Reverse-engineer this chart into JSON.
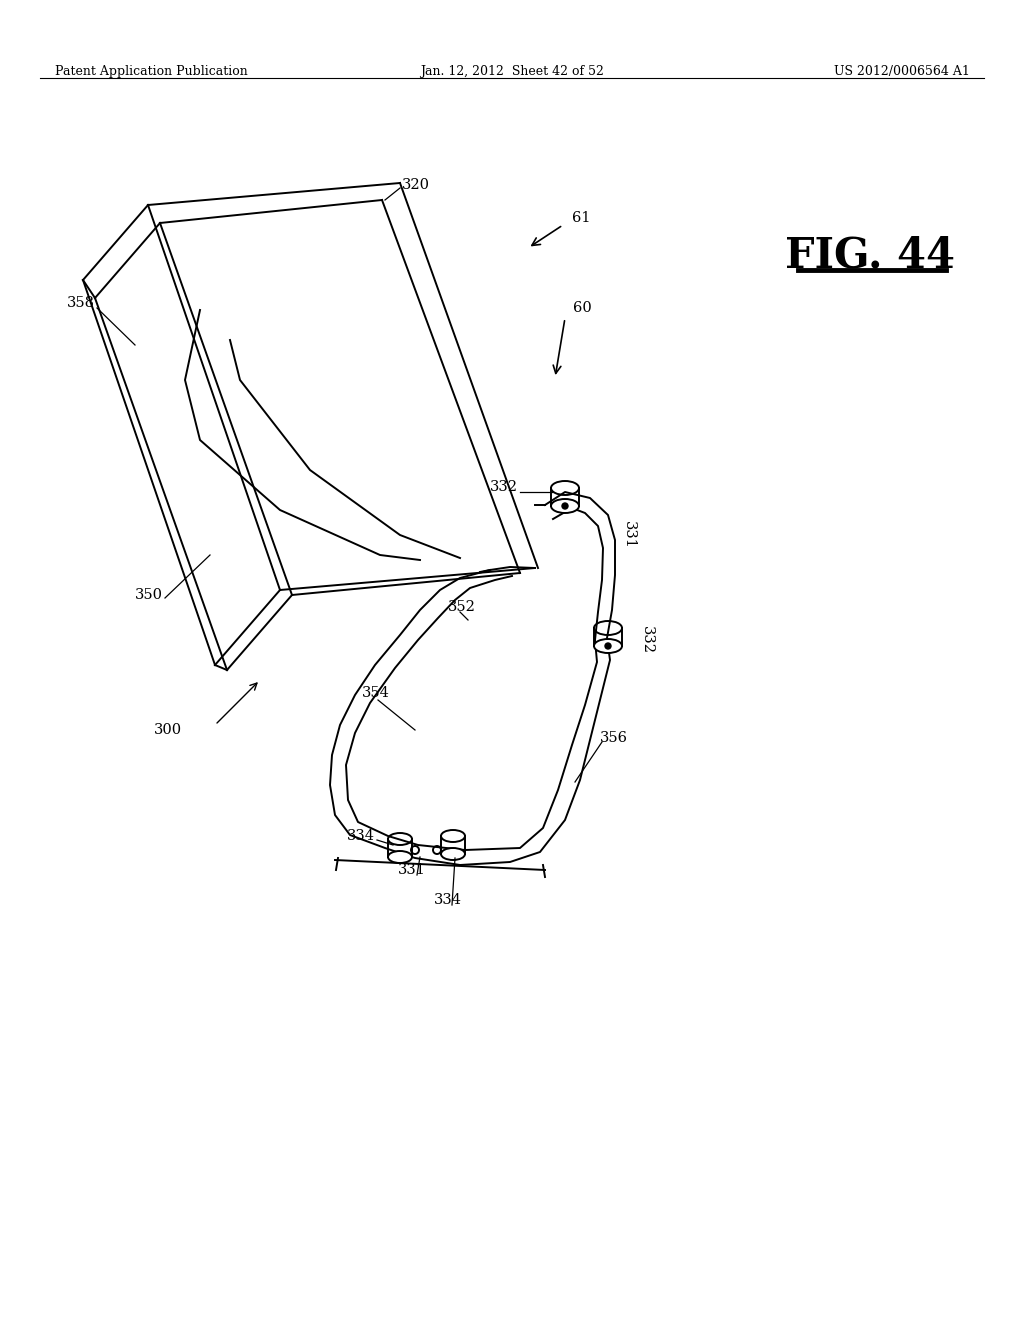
{
  "bg_color": "#ffffff",
  "header_left": "Patent Application Publication",
  "header_center": "Jan. 12, 2012  Sheet 42 of 52",
  "header_right": "US 2012/0006564 A1",
  "fig_label": "FIG. 44",
  "line_color": "#000000",
  "lw": 1.4
}
